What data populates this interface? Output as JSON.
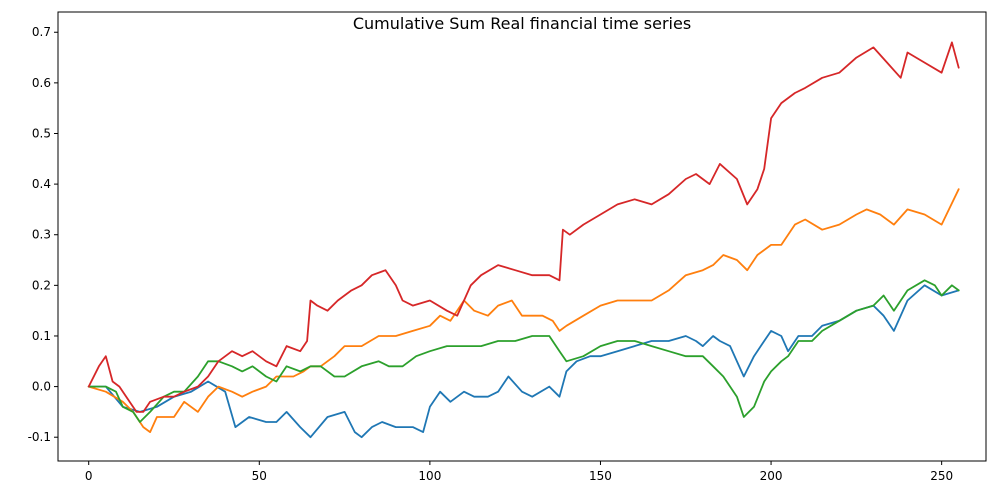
{
  "chart_data": {
    "type": "line",
    "title": "Cumulative Sum Real financial time series",
    "xlabel": "",
    "ylabel": "",
    "xlim": [
      -9,
      263
    ],
    "ylim": [
      -0.147,
      0.74
    ],
    "x_ticks": [
      0,
      50,
      100,
      150,
      200,
      250
    ],
    "y_ticks": [
      -0.1,
      0.0,
      0.1,
      0.2,
      0.3,
      0.4,
      0.5,
      0.6,
      0.7
    ],
    "grid": false,
    "legend": "none",
    "series": [
      {
        "color": "#1f77b4",
        "points": [
          [
            0,
            0.0
          ],
          [
            5,
            0.0
          ],
          [
            10,
            -0.04
          ],
          [
            15,
            -0.05
          ],
          [
            20,
            -0.04
          ],
          [
            25,
            -0.02
          ],
          [
            30,
            -0.01
          ],
          [
            35,
            0.01
          ],
          [
            40,
            -0.01
          ],
          [
            43,
            -0.08
          ],
          [
            47,
            -0.06
          ],
          [
            52,
            -0.07
          ],
          [
            55,
            -0.07
          ],
          [
            58,
            -0.05
          ],
          [
            62,
            -0.08
          ],
          [
            65,
            -0.1
          ],
          [
            70,
            -0.06
          ],
          [
            75,
            -0.05
          ],
          [
            78,
            -0.09
          ],
          [
            80,
            -0.1
          ],
          [
            83,
            -0.08
          ],
          [
            86,
            -0.07
          ],
          [
            90,
            -0.08
          ],
          [
            95,
            -0.08
          ],
          [
            98,
            -0.09
          ],
          [
            100,
            -0.04
          ],
          [
            103,
            -0.01
          ],
          [
            106,
            -0.03
          ],
          [
            110,
            -0.01
          ],
          [
            113,
            -0.02
          ],
          [
            117,
            -0.02
          ],
          [
            120,
            -0.01
          ],
          [
            123,
            0.02
          ],
          [
            127,
            -0.01
          ],
          [
            130,
            -0.02
          ],
          [
            135,
            0.0
          ],
          [
            138,
            -0.02
          ],
          [
            140,
            0.03
          ],
          [
            143,
            0.05
          ],
          [
            147,
            0.06
          ],
          [
            150,
            0.06
          ],
          [
            155,
            0.07
          ],
          [
            160,
            0.08
          ],
          [
            165,
            0.09
          ],
          [
            170,
            0.09
          ],
          [
            175,
            0.1
          ],
          [
            178,
            0.09
          ],
          [
            180,
            0.08
          ],
          [
            183,
            0.1
          ],
          [
            185,
            0.09
          ],
          [
            188,
            0.08
          ],
          [
            190,
            0.05
          ],
          [
            192,
            0.02
          ],
          [
            195,
            0.06
          ],
          [
            198,
            0.09
          ],
          [
            200,
            0.11
          ],
          [
            203,
            0.1
          ],
          [
            205,
            0.07
          ],
          [
            208,
            0.1
          ],
          [
            212,
            0.1
          ],
          [
            215,
            0.12
          ],
          [
            220,
            0.13
          ],
          [
            225,
            0.15
          ],
          [
            230,
            0.16
          ],
          [
            233,
            0.14
          ],
          [
            236,
            0.11
          ],
          [
            240,
            0.17
          ],
          [
            245,
            0.2
          ],
          [
            250,
            0.18
          ],
          [
            255,
            0.19
          ]
        ]
      },
      {
        "color": "#ff7f0e",
        "points": [
          [
            0,
            0.0
          ],
          [
            5,
            -0.01
          ],
          [
            10,
            -0.03
          ],
          [
            13,
            -0.05
          ],
          [
            16,
            -0.08
          ],
          [
            18,
            -0.09
          ],
          [
            20,
            -0.06
          ],
          [
            25,
            -0.06
          ],
          [
            28,
            -0.03
          ],
          [
            32,
            -0.05
          ],
          [
            35,
            -0.02
          ],
          [
            38,
            0.0
          ],
          [
            42,
            -0.01
          ],
          [
            45,
            -0.02
          ],
          [
            48,
            -0.01
          ],
          [
            52,
            0.0
          ],
          [
            55,
            0.02
          ],
          [
            60,
            0.02
          ],
          [
            63,
            0.03
          ],
          [
            65,
            0.04
          ],
          [
            68,
            0.04
          ],
          [
            72,
            0.06
          ],
          [
            75,
            0.08
          ],
          [
            80,
            0.08
          ],
          [
            85,
            0.1
          ],
          [
            90,
            0.1
          ],
          [
            95,
            0.11
          ],
          [
            100,
            0.12
          ],
          [
            103,
            0.14
          ],
          [
            106,
            0.13
          ],
          [
            110,
            0.17
          ],
          [
            113,
            0.15
          ],
          [
            117,
            0.14
          ],
          [
            120,
            0.16
          ],
          [
            124,
            0.17
          ],
          [
            127,
            0.14
          ],
          [
            130,
            0.14
          ],
          [
            133,
            0.14
          ],
          [
            136,
            0.13
          ],
          [
            138,
            0.11
          ],
          [
            140,
            0.12
          ],
          [
            145,
            0.14
          ],
          [
            150,
            0.16
          ],
          [
            155,
            0.17
          ],
          [
            160,
            0.17
          ],
          [
            165,
            0.17
          ],
          [
            170,
            0.19
          ],
          [
            175,
            0.22
          ],
          [
            180,
            0.23
          ],
          [
            183,
            0.24
          ],
          [
            186,
            0.26
          ],
          [
            190,
            0.25
          ],
          [
            193,
            0.23
          ],
          [
            196,
            0.26
          ],
          [
            200,
            0.28
          ],
          [
            203,
            0.28
          ],
          [
            207,
            0.32
          ],
          [
            210,
            0.33
          ],
          [
            215,
            0.31
          ],
          [
            220,
            0.32
          ],
          [
            225,
            0.34
          ],
          [
            228,
            0.35
          ],
          [
            232,
            0.34
          ],
          [
            236,
            0.32
          ],
          [
            240,
            0.35
          ],
          [
            245,
            0.34
          ],
          [
            250,
            0.32
          ],
          [
            255,
            0.39
          ]
        ]
      },
      {
        "color": "#2ca02c",
        "points": [
          [
            0,
            0.0
          ],
          [
            5,
            0.0
          ],
          [
            8,
            -0.01
          ],
          [
            10,
            -0.04
          ],
          [
            13,
            -0.05
          ],
          [
            15,
            -0.07
          ],
          [
            18,
            -0.05
          ],
          [
            22,
            -0.02
          ],
          [
            25,
            -0.01
          ],
          [
            28,
            -0.01
          ],
          [
            32,
            0.02
          ],
          [
            35,
            0.05
          ],
          [
            38,
            0.05
          ],
          [
            42,
            0.04
          ],
          [
            45,
            0.03
          ],
          [
            48,
            0.04
          ],
          [
            52,
            0.02
          ],
          [
            55,
            0.01
          ],
          [
            58,
            0.04
          ],
          [
            62,
            0.03
          ],
          [
            65,
            0.04
          ],
          [
            68,
            0.04
          ],
          [
            72,
            0.02
          ],
          [
            75,
            0.02
          ],
          [
            80,
            0.04
          ],
          [
            85,
            0.05
          ],
          [
            88,
            0.04
          ],
          [
            92,
            0.04
          ],
          [
            96,
            0.06
          ],
          [
            100,
            0.07
          ],
          [
            105,
            0.08
          ],
          [
            110,
            0.08
          ],
          [
            115,
            0.08
          ],
          [
            120,
            0.09
          ],
          [
            125,
            0.09
          ],
          [
            130,
            0.1
          ],
          [
            135,
            0.1
          ],
          [
            138,
            0.07
          ],
          [
            140,
            0.05
          ],
          [
            145,
            0.06
          ],
          [
            150,
            0.08
          ],
          [
            155,
            0.09
          ],
          [
            160,
            0.09
          ],
          [
            165,
            0.08
          ],
          [
            170,
            0.07
          ],
          [
            175,
            0.06
          ],
          [
            180,
            0.06
          ],
          [
            183,
            0.04
          ],
          [
            186,
            0.02
          ],
          [
            190,
            -0.02
          ],
          [
            192,
            -0.06
          ],
          [
            195,
            -0.04
          ],
          [
            198,
            0.01
          ],
          [
            200,
            0.03
          ],
          [
            203,
            0.05
          ],
          [
            205,
            0.06
          ],
          [
            208,
            0.09
          ],
          [
            212,
            0.09
          ],
          [
            215,
            0.11
          ],
          [
            220,
            0.13
          ],
          [
            225,
            0.15
          ],
          [
            230,
            0.16
          ],
          [
            233,
            0.18
          ],
          [
            236,
            0.15
          ],
          [
            240,
            0.19
          ],
          [
            245,
            0.21
          ],
          [
            248,
            0.2
          ],
          [
            250,
            0.18
          ],
          [
            253,
            0.2
          ],
          [
            255,
            0.19
          ]
        ]
      },
      {
        "color": "#d62728",
        "points": [
          [
            0,
            0.0
          ],
          [
            3,
            0.04
          ],
          [
            5,
            0.06
          ],
          [
            7,
            0.01
          ],
          [
            9,
            0.0
          ],
          [
            12,
            -0.03
          ],
          [
            14,
            -0.05
          ],
          [
            16,
            -0.05
          ],
          [
            18,
            -0.03
          ],
          [
            22,
            -0.02
          ],
          [
            25,
            -0.02
          ],
          [
            28,
            -0.01
          ],
          [
            32,
            0.0
          ],
          [
            35,
            0.02
          ],
          [
            38,
            0.05
          ],
          [
            42,
            0.07
          ],
          [
            45,
            0.06
          ],
          [
            48,
            0.07
          ],
          [
            52,
            0.05
          ],
          [
            55,
            0.04
          ],
          [
            58,
            0.08
          ],
          [
            62,
            0.07
          ],
          [
            64,
            0.09
          ],
          [
            65,
            0.17
          ],
          [
            67,
            0.16
          ],
          [
            70,
            0.15
          ],
          [
            73,
            0.17
          ],
          [
            77,
            0.19
          ],
          [
            80,
            0.2
          ],
          [
            83,
            0.22
          ],
          [
            87,
            0.23
          ],
          [
            90,
            0.2
          ],
          [
            92,
            0.17
          ],
          [
            95,
            0.16
          ],
          [
            100,
            0.17
          ],
          [
            105,
            0.15
          ],
          [
            108,
            0.14
          ],
          [
            112,
            0.2
          ],
          [
            115,
            0.22
          ],
          [
            120,
            0.24
          ],
          [
            125,
            0.23
          ],
          [
            130,
            0.22
          ],
          [
            135,
            0.22
          ],
          [
            138,
            0.21
          ],
          [
            139,
            0.31
          ],
          [
            141,
            0.3
          ],
          [
            145,
            0.32
          ],
          [
            150,
            0.34
          ],
          [
            155,
            0.36
          ],
          [
            160,
            0.37
          ],
          [
            165,
            0.36
          ],
          [
            170,
            0.38
          ],
          [
            175,
            0.41
          ],
          [
            178,
            0.42
          ],
          [
            182,
            0.4
          ],
          [
            185,
            0.44
          ],
          [
            190,
            0.41
          ],
          [
            193,
            0.36
          ],
          [
            196,
            0.39
          ],
          [
            198,
            0.43
          ],
          [
            200,
            0.53
          ],
          [
            203,
            0.56
          ],
          [
            207,
            0.58
          ],
          [
            210,
            0.59
          ],
          [
            215,
            0.61
          ],
          [
            220,
            0.62
          ],
          [
            225,
            0.65
          ],
          [
            230,
            0.67
          ],
          [
            234,
            0.64
          ],
          [
            238,
            0.61
          ],
          [
            240,
            0.66
          ],
          [
            245,
            0.64
          ],
          [
            250,
            0.62
          ],
          [
            253,
            0.68
          ],
          [
            255,
            0.63
          ]
        ]
      }
    ]
  }
}
